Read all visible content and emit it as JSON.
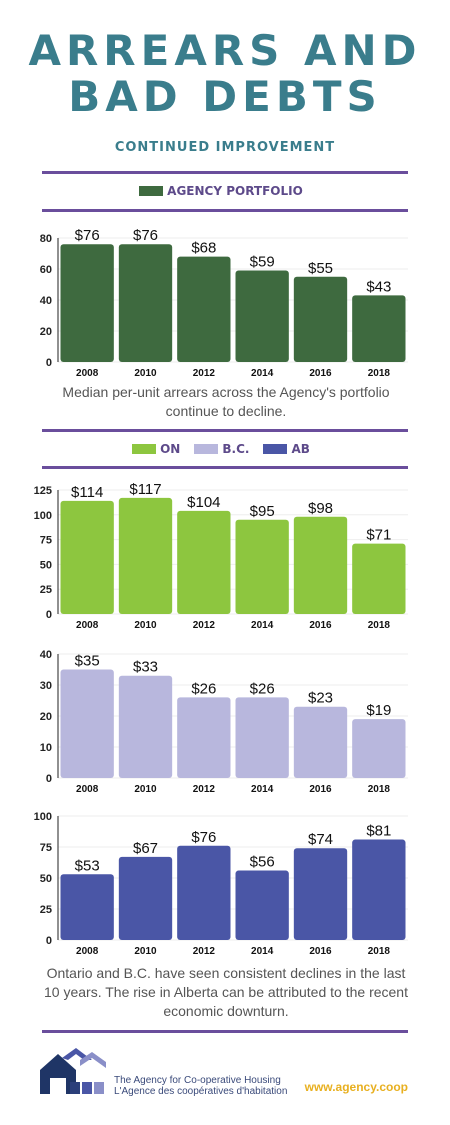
{
  "header": {
    "title_line1": "ARREARS AND",
    "title_line2": "BAD DEBTS",
    "subtitle": "CONTINUED IMPROVEMENT"
  },
  "legend_agency": {
    "label": "AGENCY PORTFOLIO",
    "color": "#3e6a3f"
  },
  "legend_provinces": [
    {
      "label": "ON",
      "color": "#8dc63f"
    },
    {
      "label": "B.C.",
      "color": "#b8b7dd"
    },
    {
      "label": "AB",
      "color": "#4a56a6"
    }
  ],
  "caption1": "Median per-unit arrears across the Agency's portfolio continue to decline.",
  "caption2": "Ontario and B.C. have seen consistent declines in the last 10 years. The rise in Alberta can be attributed to the recent economic downturn.",
  "footer": {
    "org_en": "The Agency for Co-operative Housing",
    "org_fr": "L'Agence des coopératives d'habitation",
    "url": "www.agency.coop"
  },
  "chart_data": [
    {
      "type": "bar",
      "series_name": "AGENCY PORTFOLIO",
      "color": "#3e6a3f",
      "categories": [
        "2008",
        "2010",
        "2012",
        "2014",
        "2016",
        "2018"
      ],
      "values": [
        76,
        76,
        68,
        59,
        55,
        43
      ],
      "labels": [
        "$76",
        "$76",
        "$68",
        "$59",
        "$55",
        "$43"
      ],
      "yticks": [
        0,
        20,
        40,
        60,
        80
      ],
      "ylim": [
        0,
        80
      ]
    },
    {
      "type": "bar",
      "series_name": "ON",
      "color": "#8dc63f",
      "categories": [
        "2008",
        "2010",
        "2012",
        "2014",
        "2016",
        "2018"
      ],
      "values": [
        114,
        117,
        104,
        95,
        98,
        71
      ],
      "labels": [
        "$114",
        "$117",
        "$104",
        "$95",
        "$98",
        "$71"
      ],
      "yticks": [
        0,
        25,
        50,
        75,
        100,
        125
      ],
      "ylim": [
        0,
        125
      ]
    },
    {
      "type": "bar",
      "series_name": "B.C.",
      "color": "#b8b7dd",
      "categories": [
        "2008",
        "2010",
        "2012",
        "2014",
        "2016",
        "2018"
      ],
      "values": [
        35,
        33,
        26,
        26,
        23,
        19
      ],
      "labels": [
        "$35",
        "$33",
        "$26",
        "$26",
        "$23",
        "$19"
      ],
      "yticks": [
        0,
        10,
        20,
        30,
        40
      ],
      "ylim": [
        0,
        40
      ]
    },
    {
      "type": "bar",
      "series_name": "AB",
      "color": "#4a56a6",
      "categories": [
        "2008",
        "2010",
        "2012",
        "2014",
        "2016",
        "2018"
      ],
      "values": [
        53,
        67,
        76,
        56,
        74,
        81
      ],
      "labels": [
        "$53",
        "$67",
        "$76",
        "$56",
        "$74",
        "$81"
      ],
      "yticks": [
        0,
        25,
        50,
        75,
        100
      ],
      "ylim": [
        0,
        100
      ]
    }
  ]
}
